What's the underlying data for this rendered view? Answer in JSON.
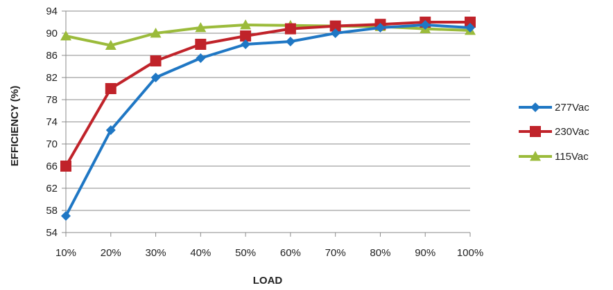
{
  "chart_data": {
    "type": "line",
    "title": "",
    "xlabel": "LOAD",
    "ylabel": "EFFICIENCY (%)",
    "categories": [
      "10%",
      "20%",
      "30%",
      "40%",
      "50%",
      "60%",
      "70%",
      "80%",
      "90%",
      "100%"
    ],
    "ylim": [
      54,
      94
    ],
    "yticks": [
      54,
      58,
      62,
      66,
      70,
      74,
      78,
      82,
      86,
      90,
      94
    ],
    "grid": true,
    "legend_position": "right",
    "series": [
      {
        "name": "277Vac",
        "color": "#1f77c4",
        "marker": "diamond",
        "values": [
          57,
          72.5,
          82,
          85.5,
          88,
          88.5,
          90,
          91,
          91.5,
          91
        ]
      },
      {
        "name": "230Vac",
        "color": "#c0232a",
        "marker": "square",
        "values": [
          66,
          80,
          85,
          88,
          89.5,
          90.8,
          91.3,
          91.6,
          92,
          92
        ]
      },
      {
        "name": "115Vac",
        "color": "#9bbb3b",
        "marker": "triangle",
        "values": [
          89.5,
          87.8,
          90,
          91,
          91.5,
          91.4,
          91.3,
          91.2,
          90.8,
          90.5
        ]
      }
    ]
  }
}
